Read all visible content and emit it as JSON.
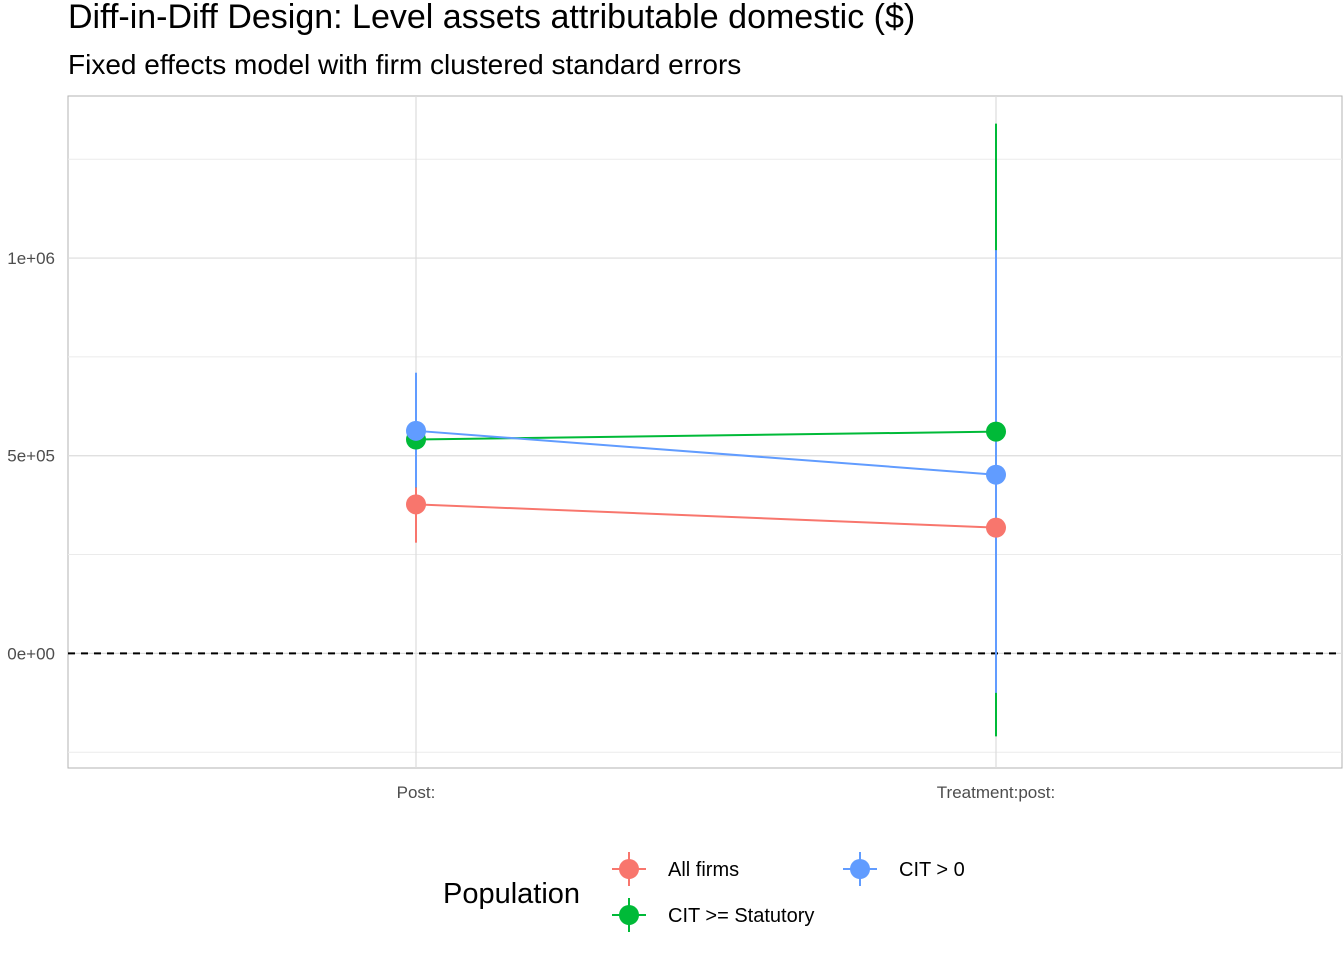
{
  "chart_data": {
    "type": "line",
    "title": "Diff-in-Diff Design: Level assets attributable domestic  ($)",
    "subtitle": "Fixed effects model with firm clustered standard errors",
    "xlabel": "",
    "ylabel": "",
    "categories": [
      "Post:",
      "Treatment:post:"
    ],
    "y_ticks": [
      0,
      500000,
      1000000
    ],
    "y_tick_labels": [
      "0e+00",
      "5e+05",
      "1e+06"
    ],
    "ylim": [
      -290000,
      1410000
    ],
    "reference_line": {
      "y": 0,
      "style": "dashed",
      "color": "#000000"
    },
    "grid": true,
    "legend_position": "bottom",
    "legend_title": "Population",
    "series": [
      {
        "name": "All firms",
        "color": "#F8766D",
        "values": [
          377000,
          318000
        ],
        "ci_low": [
          280000,
          130000
        ],
        "ci_high": [
          420000,
          520000
        ]
      },
      {
        "name": "CIT >= Statutory",
        "color": "#00BA38",
        "values": [
          541000,
          561000
        ],
        "ci_low": [
          420000,
          -210000
        ],
        "ci_high": [
          660000,
          1340000
        ]
      },
      {
        "name": "CIT > 0",
        "color": "#619CFF",
        "values": [
          563000,
          452000
        ],
        "ci_low": [
          420000,
          -100000
        ],
        "ci_high": [
          710000,
          1020000
        ]
      }
    ]
  }
}
